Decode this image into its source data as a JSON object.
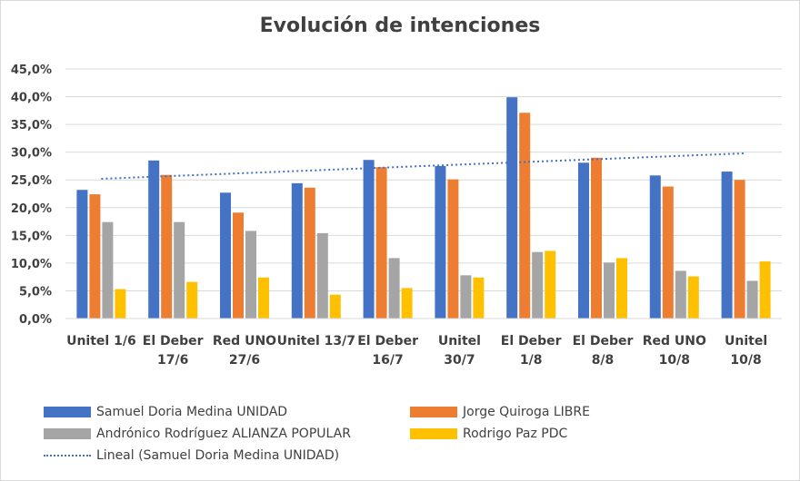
{
  "chart_data": {
    "type": "bar",
    "title": "Evolución de intenciones",
    "xlabel": "",
    "ylabel": "",
    "ylim": [
      0,
      45
    ],
    "yticks": [
      "0,0%",
      "5,0%",
      "10,0%",
      "15,0%",
      "20,0%",
      "25,0%",
      "30,0%",
      "35,0%",
      "40,0%",
      "45,0%"
    ],
    "categories": [
      [
        "Unitel 1/6"
      ],
      [
        "El Deber",
        "17/6"
      ],
      [
        "Red UNO",
        "27/6"
      ],
      [
        "Unitel 13/7"
      ],
      [
        "El Deber",
        "16/7"
      ],
      [
        "Unitel",
        "30/7"
      ],
      [
        "El Deber",
        "1/8"
      ],
      [
        "El Deber",
        "8/8"
      ],
      [
        "Red UNO",
        "10/8"
      ],
      [
        "Unitel",
        "10/8"
      ]
    ],
    "series": [
      {
        "name": "Samuel Doria Medina UNIDAD",
        "color": "#4472c4",
        "values": [
          23.2,
          28.5,
          22.7,
          24.4,
          28.6,
          27.5,
          39.9,
          28.1,
          25.8,
          26.5
        ]
      },
      {
        "name": "Jorge Quiroga LIBRE",
        "color": "#ed7d31",
        "values": [
          22.4,
          25.9,
          19.1,
          23.6,
          27.3,
          25.1,
          37.1,
          29.0,
          23.8,
          25.0
        ]
      },
      {
        "name": "Andrónico Rodríguez ALIANZA POPULAR",
        "color": "#a5a5a5",
        "values": [
          17.4,
          17.4,
          15.8,
          15.4,
          10.9,
          7.8,
          12.0,
          10.1,
          8.6,
          6.8
        ]
      },
      {
        "name": "Rodrigo Paz PDC",
        "color": "#ffc000",
        "values": [
          5.3,
          6.6,
          7.4,
          4.3,
          5.5,
          7.4,
          12.2,
          10.9,
          7.6,
          10.3
        ]
      }
    ],
    "trendline": {
      "name": "Lineal (Samuel Doria Medina UNIDAD)",
      "series": "Samuel Doria Medina UNIDAD",
      "type": "linear",
      "color": "#4472c4",
      "start": 25.2,
      "end": 29.8
    },
    "legend": "bottom",
    "grid": true
  }
}
